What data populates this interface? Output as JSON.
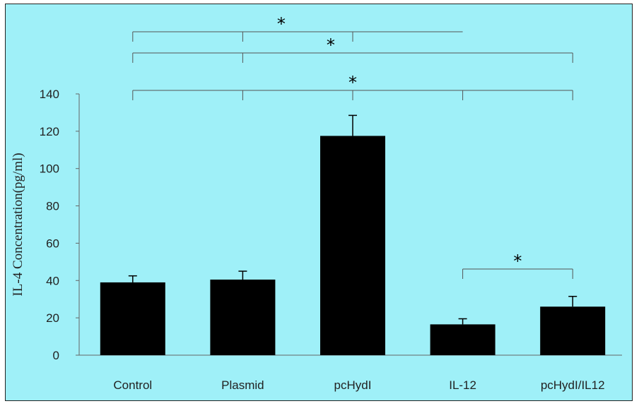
{
  "chart_data": {
    "type": "bar",
    "title": "",
    "xlabel": "",
    "ylabel": "IL-4 Concentration(pg/ml)",
    "ylim": [
      0,
      140
    ],
    "yticks": [
      0,
      20,
      40,
      60,
      80,
      100,
      120,
      140
    ],
    "grid": false,
    "categories": [
      "Control",
      "Plasmid",
      "pcHydI",
      "IL-12",
      "pcHydI/IL12"
    ],
    "values": [
      39,
      40.5,
      117.5,
      16.5,
      26
    ],
    "errors": [
      3.5,
      4.5,
      11,
      3,
      5.5
    ],
    "bar_color": "#000000",
    "background_color": "#9ff0f8",
    "significance": [
      {
        "label": "*",
        "groups": [
          "Control",
          "Plasmid",
          "pcHydI",
          "IL-12"
        ]
      },
      {
        "label": "*",
        "groups": [
          "Control",
          "Plasmid",
          "pcHydI/IL12"
        ]
      },
      {
        "label": "*",
        "groups": [
          "Control",
          "Plasmid",
          "pcHydI",
          "IL-12",
          "pcHydI/IL12"
        ]
      },
      {
        "label": "*",
        "groups": [
          "IL-12",
          "pcHydI/IL12"
        ]
      }
    ]
  }
}
